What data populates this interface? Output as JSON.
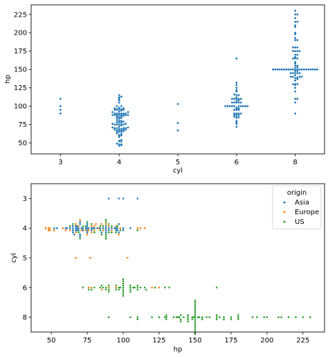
{
  "colors": {
    "Asia": "#1f77b4",
    "Europe": "#ff7f0e",
    "US": "#2ca02c"
  },
  "chart_data": [
    {
      "type": "scatter",
      "subtype": "swarm",
      "orientation": "vertical",
      "xlabel": "cyl",
      "ylabel": "hp",
      "categories": [
        "3",
        "4",
        "5",
        "6",
        "8"
      ],
      "ylim": [
        35,
        238
      ],
      "yticks": [
        50,
        75,
        100,
        125,
        150,
        175,
        200,
        225
      ],
      "grid": false,
      "legend": null,
      "series": [
        {
          "values_by_category": {
            "3": [
              90,
              95,
              100,
              110
            ],
            "4": [
              46,
              47,
              48,
              48,
              49,
              52,
              52,
              53,
              54,
              58,
              60,
              60,
              61,
              62,
              63,
              65,
              65,
              65,
              66,
              67,
              67,
              67,
              68,
              68,
              68,
              69,
              69,
              70,
              70,
              70,
              70,
              71,
              71,
              72,
              74,
              75,
              75,
              75,
              75,
              75,
              76,
              76,
              78,
              78,
              78,
              79,
              80,
              80,
              81,
              83,
              84,
              84,
              85,
              86,
              86,
              87,
              88,
              88,
              88,
              88,
              88,
              88,
              88,
              88,
              90,
              90,
              90,
              90,
              90,
              90,
              92,
              92,
              93,
              94,
              95,
              95,
              95,
              96,
              96,
              96,
              97,
              97,
              98,
              100,
              100,
              105,
              108,
              110,
              112,
              113,
              115
            ],
            "5": [
              67,
              77,
              103
            ],
            "6": [
              72,
              76,
              78,
              80,
              84,
              85,
              85,
              86,
              88,
              88,
              88,
              90,
              90,
              90,
              90,
              95,
              95,
              95,
              97,
              97,
              98,
              100,
              100,
              100,
              100,
              100,
              100,
              100,
              100,
              100,
              100,
              105,
              105,
              105,
              105,
              105,
              107,
              108,
              110,
              110,
              110,
              110,
              110,
              112,
              115,
              115,
              116,
              120,
              122,
              125,
              129,
              132,
              165
            ],
            "8": [
              90,
              105,
              110,
              110,
              120,
              125,
              129,
              130,
              130,
              130,
              135,
              137,
              138,
              139,
              140,
              140,
              140,
              140,
              142,
              145,
              145,
              145,
              145,
              145,
              148,
              148,
              149,
              150,
              150,
              150,
              150,
              150,
              150,
              150,
              150,
              150,
              150,
              150,
              150,
              150,
              150,
              150,
              150,
              150,
              150,
              150,
              150,
              152,
              153,
              155,
              155,
              158,
              160,
              165,
              165,
              165,
              167,
              170,
              170,
              175,
              175,
              175,
              175,
              180,
              180,
              180,
              190,
              190,
              193,
              198,
              200,
              208,
              210,
              215,
              215,
              220,
              225,
              225,
              230
            ]
          }
        }
      ]
    },
    {
      "type": "scatter",
      "subtype": "swarm",
      "orientation": "horizontal",
      "xlabel": "hp",
      "ylabel": "cyl",
      "categories": [
        "3",
        "4",
        "5",
        "6",
        "8"
      ],
      "xlim": [
        36,
        240
      ],
      "xticks": [
        50,
        75,
        100,
        125,
        150,
        175,
        200,
        225
      ],
      "grid": false,
      "legend": {
        "title": "origin",
        "placement": "top-right",
        "entries": [
          "Asia",
          "Europe",
          "US"
        ]
      },
      "series": [
        {
          "name": "Asia",
          "values_by_category": {
            "3": [
              90,
              97,
              100,
              110
            ],
            "4": [
              52,
              54,
              60,
              61,
              63,
              65,
              65,
              65,
              65,
              66,
              67,
              67,
              67,
              68,
              68,
              68,
              69,
              69,
              70,
              70,
              70,
              70,
              71,
              72,
              72,
              74,
              75,
              75,
              75,
              75,
              75,
              76,
              78,
              78,
              79,
              80,
              82,
              84,
              85,
              86,
              88,
              88,
              88,
              88,
              90,
              90,
              92,
              94,
              95,
              95,
              96,
              96,
              97,
              97,
              100,
              100,
              105
            ],
            "5": [],
            "6": [],
            "8": []
          }
        },
        {
          "name": "Europe",
          "values_by_category": {
            "3": [],
            "4": [
              46,
              48,
              48,
              49,
              49,
              52,
              58,
              60,
              63,
              67,
              67,
              69,
              70,
              71,
              74,
              75,
              76,
              78,
              78,
              80,
              80,
              81,
              83,
              85,
              86,
              88,
              90,
              92,
              95,
              97,
              98,
              110,
              112,
              115
            ],
            "5": [
              67,
              77,
              103
            ],
            "6": [
              76,
              78,
              85,
              90,
              95,
              120,
              125
            ],
            "8": []
          }
        },
        {
          "name": "US",
          "values_by_category": {
            "3": [],
            "4": [
              63,
              65,
              69,
              70,
              72,
              74,
              75,
              78,
              80,
              84,
              84,
              85,
              86,
              88,
              88,
              88,
              88,
              88,
              90,
              90,
              92,
              92,
              95,
              96,
              98,
              110
            ],
            "5": [],
            "6": [
              72,
              76,
              78,
              80,
              84,
              85,
              86,
              88,
              88,
              90,
              90,
              90,
              95,
              95,
              97,
              97,
              98,
              100,
              100,
              100,
              100,
              100,
              100,
              100,
              100,
              100,
              105,
              105,
              105,
              105,
              107,
              108,
              110,
              110,
              110,
              112,
              115,
              116,
              122,
              129,
              132,
              165
            ],
            "8": [
              90,
              105,
              110,
              110,
              120,
              125,
              129,
              130,
              130,
              130,
              135,
              137,
              138,
              139,
              140,
              140,
              140,
              142,
              145,
              145,
              145,
              145,
              148,
              148,
              149,
              150,
              150,
              150,
              150,
              150,
              150,
              150,
              150,
              150,
              150,
              150,
              150,
              150,
              150,
              150,
              150,
              150,
              152,
              153,
              155,
              155,
              158,
              160,
              165,
              165,
              165,
              167,
              170,
              170,
              175,
              175,
              180,
              180,
              180,
              190,
              193,
              198,
              200,
              208,
              210,
              215,
              220,
              225,
              230
            ]
          }
        }
      ]
    }
  ]
}
